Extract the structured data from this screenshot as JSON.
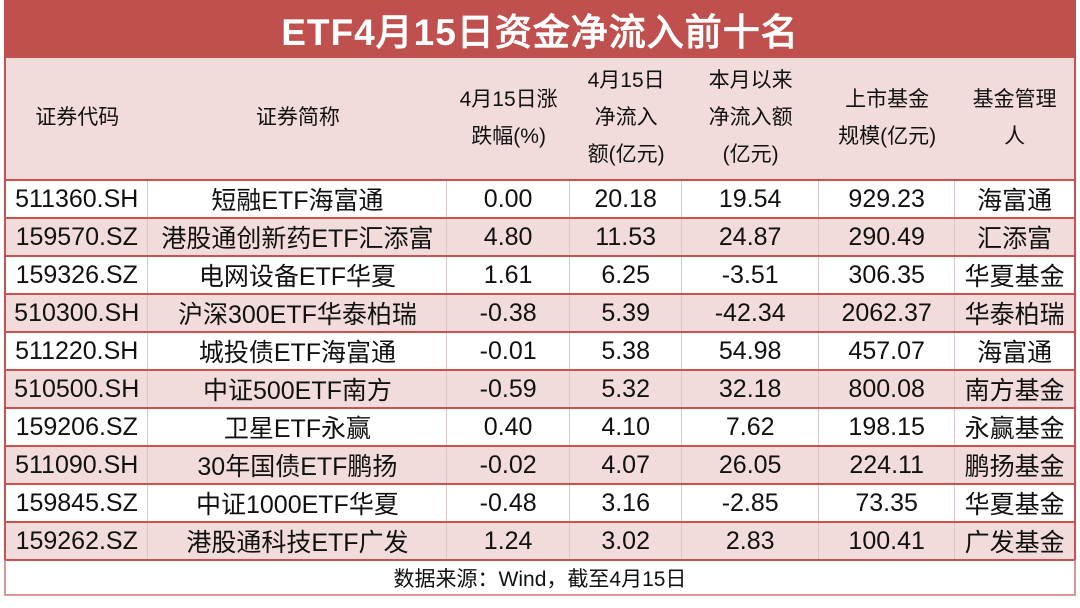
{
  "title": "ETF4月15日资金净流入前十名",
  "chart_data": {
    "type": "table",
    "title": "ETF4月15日资金净流入前十名",
    "columns": [
      "证券代码",
      "证券简称",
      "4月15日涨\n跌幅(%)",
      "4月15日\n净流入\n额(亿元)",
      "本月以来\n净流入额\n(亿元)",
      "上市基金\n规模(亿元)",
      "基金管理\n人"
    ],
    "rows": [
      [
        "511360.SH",
        "短融ETF海富通",
        "0.00",
        "20.18",
        "19.54",
        "929.23",
        "海富通"
      ],
      [
        "159570.SZ",
        "港股通创新药ETF汇添富",
        "4.80",
        "11.53",
        "24.87",
        "290.49",
        "汇添富"
      ],
      [
        "159326.SZ",
        "电网设备ETF华夏",
        "1.61",
        "6.25",
        "-3.51",
        "306.35",
        "华夏基金"
      ],
      [
        "510300.SH",
        "沪深300ETF华泰柏瑞",
        "-0.38",
        "5.39",
        "-42.34",
        "2062.37",
        "华泰柏瑞"
      ],
      [
        "511220.SH",
        "城投债ETF海富通",
        "-0.01",
        "5.38",
        "54.98",
        "457.07",
        "海富通"
      ],
      [
        "510500.SH",
        "中证500ETF南方",
        "-0.59",
        "5.32",
        "32.18",
        "800.08",
        "南方基金"
      ],
      [
        "159206.SZ",
        "卫星ETF永赢",
        "0.40",
        "4.10",
        "7.62",
        "198.15",
        "永赢基金"
      ],
      [
        "511090.SH",
        "30年国债ETF鹏扬",
        "-0.02",
        "4.07",
        "26.05",
        "224.11",
        "鹏扬基金"
      ],
      [
        "159845.SZ",
        "中证1000ETF华夏",
        "-0.48",
        "3.16",
        "-2.85",
        "73.35",
        "华夏基金"
      ],
      [
        "159262.SZ",
        "港股通科技ETF广发",
        "1.24",
        "3.02",
        "2.83",
        "100.41",
        "广发基金"
      ]
    ],
    "footer": "数据来源：Wind，截至4月15日"
  },
  "colors": {
    "title_bg": "#bf504d",
    "title_text": "#ffffff",
    "header_bg": "#f2dcdb",
    "row_bg": "#ffffff",
    "alt_row_bg": "#f2dcdb",
    "row_border": "#c9514f",
    "cell_border": "#dcc6c5",
    "footer_border": "#d99694",
    "text": "#111111"
  }
}
